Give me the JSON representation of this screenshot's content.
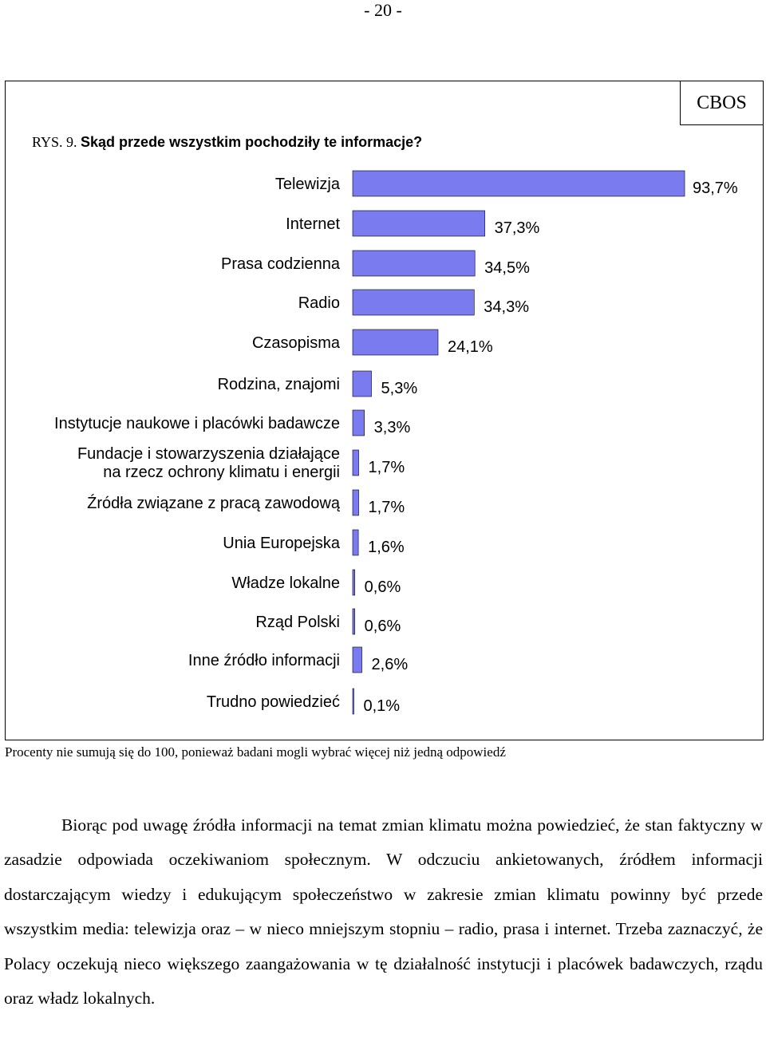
{
  "page_number": "- 20 -",
  "cbos_label": "CBOS",
  "figure": {
    "title_number": "RYS. 9.",
    "title_text": "Skąd przede wszystkim pochodziły te informacje?"
  },
  "footnote": "Procenty nie sumują się do 100, ponieważ badani mogli wybrać więcej niż jedną odpowiedź",
  "body_paragraph": "Biorąc pod uwagę źródła informacji na temat zmian klimatu można powiedzieć, że stan faktyczny w zasadzie odpowiada oczekiwaniom społecznym. W odczuciu ankietowanych, źródłem informacji dostarczającym wiedzy i edukującym społeczeństwo w zakresie zmian klimatu powinny być przede wszystkim media: telewizja oraz – w nieco mniejszym stopniu – radio, prasa i internet. Trzeba zaznaczyć, że Polacy oczekują nieco większego zaangażowania w tę działalność instytucji i placówek badawczych, rządu oraz władz lokalnych.",
  "colors": {
    "bar": "#7b7bf0",
    "bar_stroke": "#000000"
  },
  "chart_data": {
    "type": "bar",
    "orientation": "horizontal",
    "title": "Skąd przede wszystkim pochodziły te informacje?",
    "categories": [
      [
        "Telewizja"
      ],
      [
        "Internet"
      ],
      [
        "Prasa codzienna"
      ],
      [
        "Radio"
      ],
      [
        "Czasopisma"
      ],
      [
        "Rodzina, znajomi"
      ],
      [
        "Instytucje naukowe i placówki badawcze"
      ],
      [
        "Fundacje i stowarzyszenia działające",
        "na rzecz ochrony klimatu i energii"
      ],
      [
        "Źródła związane z pracą zawodową"
      ],
      [
        "Unia Europejska"
      ],
      [
        "Władze lokalne"
      ],
      [
        "Rząd Polski"
      ],
      [
        "Inne źródło informacji"
      ],
      [
        "Trudno powiedzieć"
      ]
    ],
    "values": [
      93.7,
      37.3,
      34.5,
      34.3,
      24.1,
      5.3,
      3.3,
      1.7,
      1.7,
      1.6,
      0.6,
      0.6,
      2.6,
      0.1
    ],
    "value_labels": [
      "93,7%",
      "37,3%",
      "34,5%",
      "34,3%",
      "24,1%",
      "5,3%",
      "3,3%",
      "1,7%",
      "1,7%",
      "1,6%",
      "0,6%",
      "0,6%",
      "2,6%",
      "0,1%"
    ],
    "unit": "%",
    "xlim": [
      0,
      100
    ]
  }
}
